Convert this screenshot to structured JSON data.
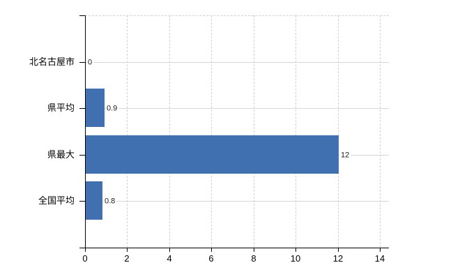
{
  "chart_data": {
    "type": "bar",
    "orientation": "horizontal",
    "title": "",
    "xlabel": "",
    "ylabel": "",
    "categories": [
      "北名古屋市",
      "県平均",
      "県最大",
      "全国平均"
    ],
    "values": [
      0,
      0.9,
      12,
      0.8
    ],
    "value_labels": [
      "0",
      "0.9",
      "12",
      "0.8"
    ],
    "xlim": [
      0,
      14
    ],
    "x_ticks": [
      0,
      2,
      4,
      6,
      8,
      10,
      12,
      14
    ],
    "x_tick_labels": [
      "0",
      "2",
      "4",
      "6",
      "8",
      "10",
      "12",
      "14"
    ],
    "grid": true,
    "legend": false,
    "bar_color": "#4170b0",
    "axis_color": "#000000",
    "vertical_gridline_color": "#d8cfcf",
    "horizontal_gridline_color": "#d2dbd3",
    "value_label_color": "#1a1a1a",
    "background_color": "#ffffff"
  }
}
